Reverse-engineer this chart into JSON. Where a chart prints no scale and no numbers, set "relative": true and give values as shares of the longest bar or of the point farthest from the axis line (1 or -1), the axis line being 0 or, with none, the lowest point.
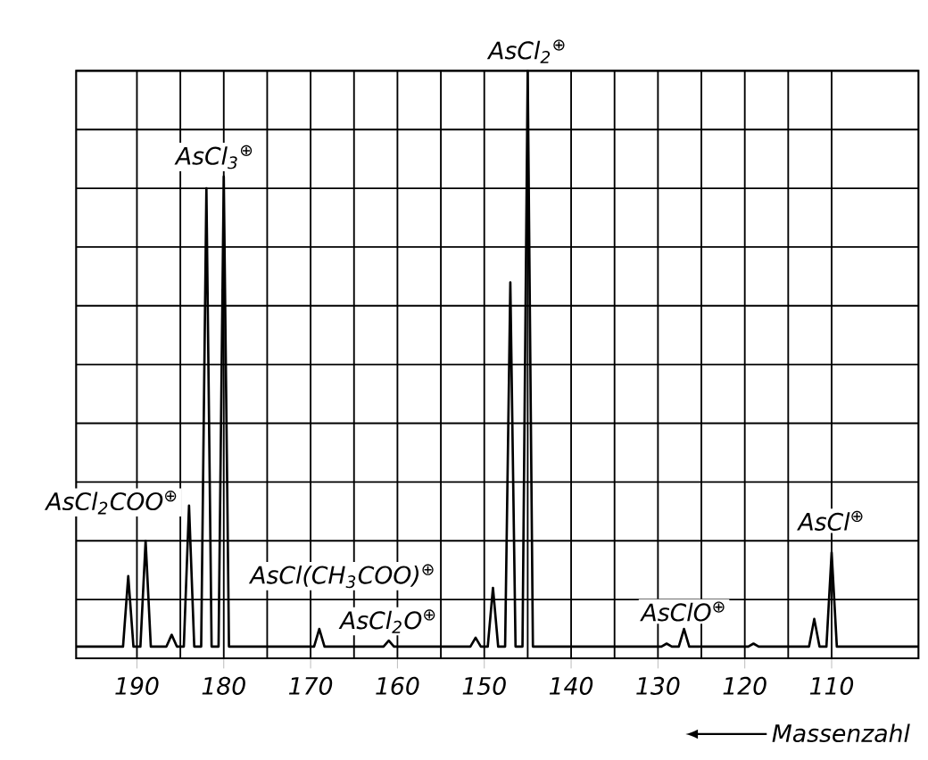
{
  "chart_data": {
    "type": "line",
    "relative": true,
    "xlabel": "Massenzahl",
    "xlim": [
      197,
      100
    ],
    "xticks": [
      190,
      180,
      170,
      160,
      150,
      140,
      130,
      120,
      110
    ],
    "grid": true,
    "line_style": "solid",
    "series": [
      {
        "color": "#000000",
        "x": [
          100,
          109.4,
          110,
          110.6,
          111.4,
          112,
          112.6,
          118.4,
          119,
          119.6,
          126.4,
          127,
          127.6,
          128.4,
          129,
          129.6,
          144.4,
          145,
          145.6,
          146.4,
          147,
          147.6,
          148.4,
          149,
          149.6,
          150.4,
          151,
          151.6,
          160.4,
          161,
          161.6,
          168.4,
          169,
          169.6,
          179.4,
          180,
          180.6,
          181.4,
          182,
          182.6,
          183.4,
          184,
          184.6,
          185.4,
          186,
          186.6,
          188.4,
          189,
          189.6,
          190.4,
          191,
          191.6,
          197
        ],
        "values": [
          0.02,
          0.02,
          0.18,
          0.02,
          0.02,
          0.067,
          0.02,
          0.02,
          0.025,
          0.02,
          0.02,
          0.05,
          0.02,
          0.02,
          0.025,
          0.02,
          0.02,
          1.0,
          0.02,
          0.02,
          0.64,
          0.02,
          0.02,
          0.12,
          0.02,
          0.02,
          0.035,
          0.02,
          0.02,
          0.03,
          0.02,
          0.02,
          0.05,
          0.02,
          0.02,
          0.82,
          0.02,
          0.02,
          0.8,
          0.02,
          0.02,
          0.26,
          0.02,
          0.02,
          0.04,
          0.02,
          0.02,
          0.2,
          0.02,
          0.02,
          0.14,
          0.02,
          0.02
        ]
      }
    ],
    "annotations": [
      {
        "text": "AsCl$_{2}$COO$^{⊕}$",
        "x": 189,
        "y": 0.2
      },
      {
        "text": "AsCl$_{3}$$^{⊕}$",
        "x": 181,
        "y": 0.82
      },
      {
        "text": "AsCl(CH$_{3}$COO)$^{⊕}$",
        "x": 169,
        "y": 0.05
      },
      {
        "text": "AsCl$_{2}$O$^{⊕}$",
        "x": 161,
        "y": 0.03
      },
      {
        "text": "AsCl$_{2}$$^{⊕}$",
        "x": 145,
        "y": 1.0
      },
      {
        "text": "AsClO$^{⊕}$",
        "x": 127,
        "y": 0.05
      },
      {
        "text": "AsCl$^{⊕}$",
        "x": 110,
        "y": 0.18
      }
    ]
  }
}
